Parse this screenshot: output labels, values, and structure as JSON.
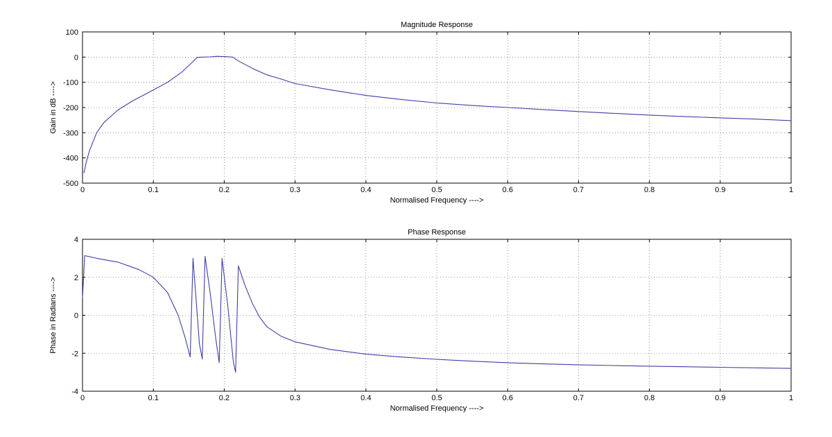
{
  "chart_data": [
    {
      "type": "line",
      "title": "Magnitude Response",
      "xlabel": "Normalised Frequency ---->",
      "ylabel": "Gain in dB ---->",
      "xlim": [
        0,
        1
      ],
      "ylim": [
        -500,
        100
      ],
      "xticks": [
        0,
        0.1,
        0.2,
        0.3,
        0.4,
        0.5,
        0.6,
        0.7,
        0.8,
        0.9,
        1
      ],
      "xtick_labels": [
        "0",
        "0.1",
        "0.2",
        "0.3",
        "0.4",
        "0.5",
        "0.6",
        "0.7",
        "0.8",
        "0.9",
        "1"
      ],
      "yticks": [
        -500,
        -400,
        -300,
        -200,
        -100,
        0,
        100
      ],
      "ytick_labels": [
        "-500",
        "-400",
        "-300",
        "-200",
        "-100",
        "0",
        "100"
      ],
      "grid": true,
      "color": "#3b3fa8",
      "series": [
        {
          "x": [
            0.002,
            0.005,
            0.01,
            0.02,
            0.03,
            0.05,
            0.07,
            0.1,
            0.12,
            0.14,
            0.155,
            0.162,
            0.17,
            0.18,
            0.19,
            0.2,
            0.212,
            0.22,
            0.24,
            0.26,
            0.28,
            0.3,
            0.35,
            0.4,
            0.45,
            0.5,
            0.55,
            0.6,
            0.65,
            0.7,
            0.75,
            0.8,
            0.85,
            0.9,
            0.95,
            1.0
          ],
          "values": [
            -460,
            -420,
            -370,
            -300,
            -260,
            -210,
            -175,
            -130,
            -100,
            -60,
            -20,
            -1,
            0,
            1,
            3,
            2,
            0,
            -15,
            -45,
            -70,
            -87,
            -105,
            -130,
            -152,
            -168,
            -182,
            -192,
            -200,
            -208,
            -216,
            -223,
            -230,
            -236,
            -241,
            -246,
            -252
          ]
        }
      ]
    },
    {
      "type": "line",
      "title": "Phase Response",
      "xlabel": "Normalised Frequency ---->",
      "ylabel": "Phase in Radians ---->",
      "xlim": [
        0,
        1
      ],
      "ylim": [
        -4,
        4
      ],
      "xticks": [
        0,
        0.1,
        0.2,
        0.3,
        0.4,
        0.5,
        0.6,
        0.7,
        0.8,
        0.9,
        1
      ],
      "xtick_labels": [
        "0",
        "0.1",
        "0.2",
        "0.3",
        "0.4",
        "0.5",
        "0.6",
        "0.7",
        "0.8",
        "0.9",
        "1"
      ],
      "yticks": [
        -4,
        -2,
        0,
        2,
        4
      ],
      "ytick_labels": [
        "-4",
        "-2",
        "0",
        "2",
        "4"
      ],
      "grid": true,
      "color": "#3b3fa8",
      "series": [
        {
          "x": [
            0.0,
            0.003,
            0.02,
            0.05,
            0.08,
            0.1,
            0.12,
            0.135,
            0.145,
            0.152,
            0.156,
            0.165,
            0.169,
            0.173,
            0.18,
            0.188,
            0.193,
            0.197,
            0.205,
            0.213,
            0.216,
            0.22,
            0.23,
            0.24,
            0.25,
            0.26,
            0.28,
            0.3,
            0.35,
            0.4,
            0.45,
            0.5,
            0.55,
            0.6,
            0.65,
            0.7,
            0.75,
            0.8,
            0.85,
            0.9,
            0.95,
            1.0
          ],
          "values": [
            0.9,
            3.14,
            3.0,
            2.8,
            2.4,
            2.0,
            1.2,
            0.0,
            -1.2,
            -2.2,
            3.0,
            -1.5,
            -2.3,
            3.1,
            1.2,
            -1.2,
            -2.5,
            3.0,
            0.5,
            -2.5,
            -3.0,
            2.6,
            1.5,
            0.6,
            -0.1,
            -0.6,
            -1.1,
            -1.4,
            -1.8,
            -2.05,
            -2.2,
            -2.32,
            -2.42,
            -2.5,
            -2.56,
            -2.61,
            -2.65,
            -2.68,
            -2.71,
            -2.74,
            -2.77,
            -2.8
          ]
        }
      ]
    }
  ]
}
